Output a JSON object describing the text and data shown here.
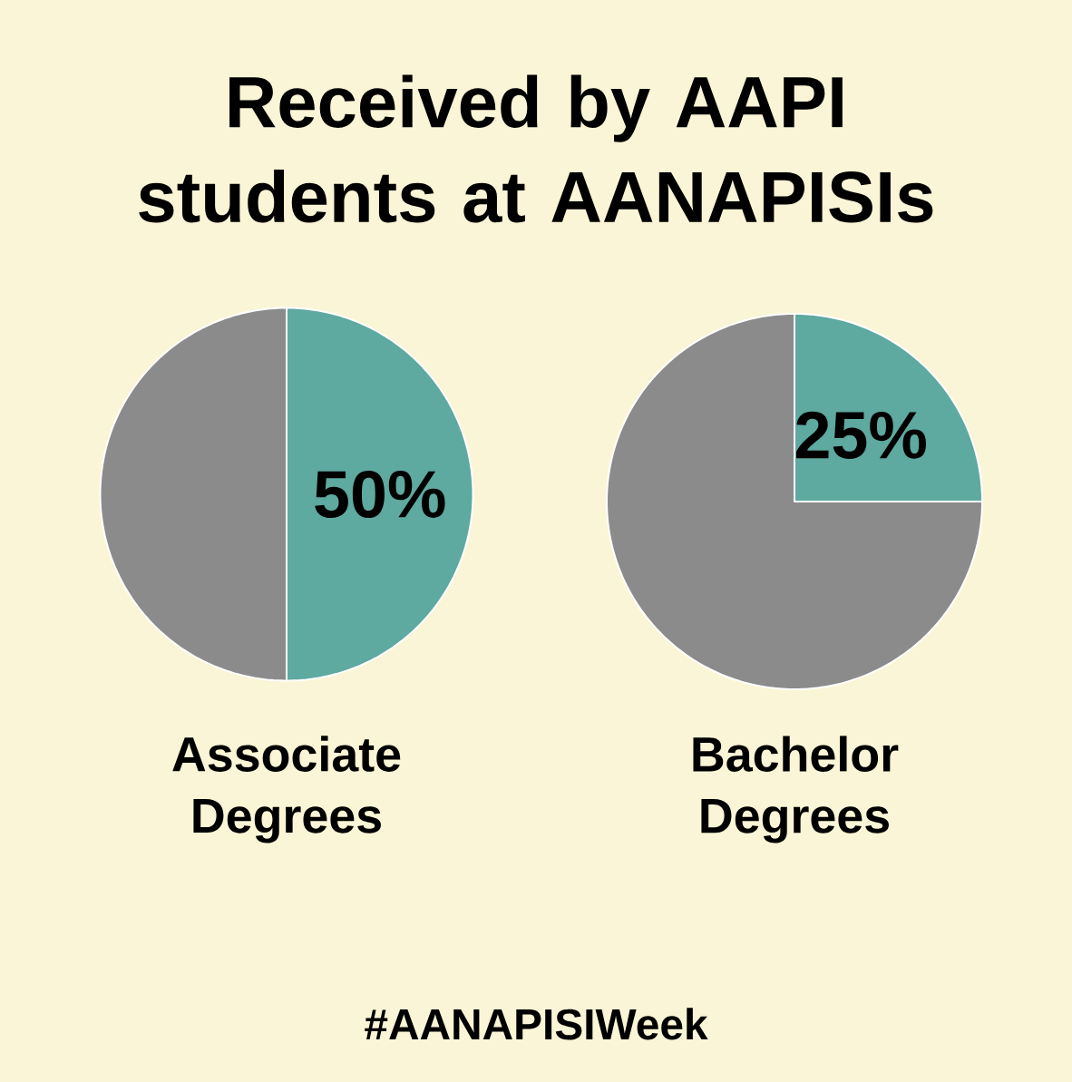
{
  "chart_data": [
    {
      "type": "pie",
      "title": "Received by AAPI students at AANAPISIs",
      "categories": [
        null,
        null
      ],
      "values": [
        50,
        50
      ],
      "colors": [
        "#5ea9a0",
        "#8b8b8b"
      ],
      "value_labels": [
        "50%",
        null
      ],
      "xlabel": "Associate Degrees",
      "annotations": [
        "#AANAPISIWeek"
      ]
    },
    {
      "type": "pie",
      "categories": [
        null,
        null
      ],
      "values": [
        25,
        75
      ],
      "colors": [
        "#5ea9a0",
        "#8b8b8b"
      ],
      "value_labels": [
        "25%",
        null
      ],
      "xlabel": "Bachelor Degrees"
    }
  ]
}
